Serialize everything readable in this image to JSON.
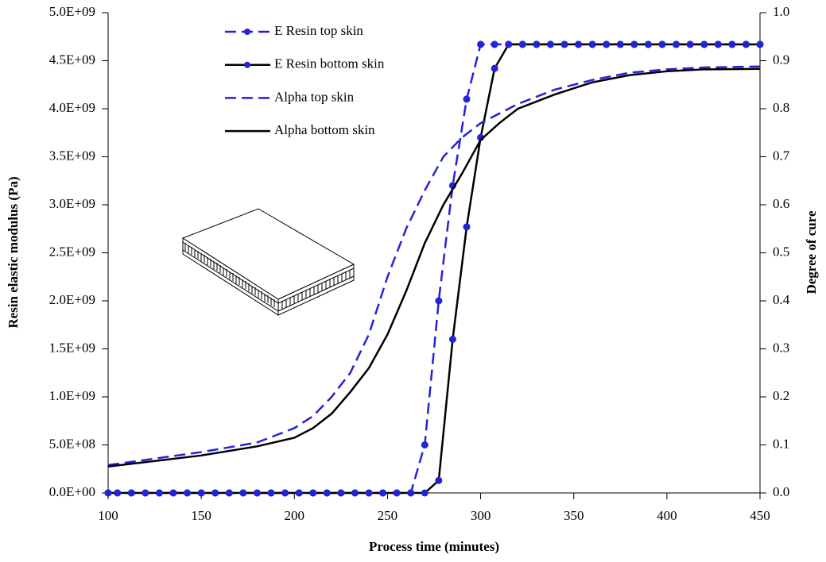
{
  "chart_data": {
    "type": "line",
    "xlabel": "Process time (minutes)",
    "ylabel": "Resin elastic modulus (Pa)",
    "y2label": "Degree of cure",
    "xlim": [
      100,
      450
    ],
    "xticks": [
      100,
      150,
      200,
      250,
      300,
      350,
      400,
      450
    ],
    "ylim": [
      0,
      5000000000
    ],
    "yticks": [
      {
        "value": 0,
        "label": "0.0E+00"
      },
      {
        "value": 500000000,
        "label": "5.0E+08"
      },
      {
        "value": 1000000000,
        "label": "1.0E+09"
      },
      {
        "value": 1500000000,
        "label": "1.5E+09"
      },
      {
        "value": 2000000000,
        "label": "2.0E+09"
      },
      {
        "value": 2500000000,
        "label": "2.5E+09"
      },
      {
        "value": 3000000000,
        "label": "3.0E+09"
      },
      {
        "value": 3500000000,
        "label": "3.5E+09"
      },
      {
        "value": 4000000000,
        "label": "4.0E+09"
      },
      {
        "value": 4500000000,
        "label": "4.5E+09"
      },
      {
        "value": 5000000000,
        "label": "5.0E+09"
      }
    ],
    "y2lim": [
      0,
      1
    ],
    "y2ticks": [
      {
        "value": 0,
        "label": "0.0"
      },
      0.1,
      0.2,
      0.3,
      0.4,
      0.5,
      0.6,
      0.7,
      0.8,
      0.9,
      {
        "value": 1,
        "label": "1.0"
      }
    ],
    "series": [
      {
        "name": "E Resin top skin",
        "color": "#2323d8",
        "style": "dashed",
        "marker": true,
        "x": [
          100,
          105,
          112.5,
          120,
          127.5,
          135,
          142.5,
          150,
          157.5,
          165,
          172.5,
          180,
          187.5,
          195,
          202.5,
          210,
          217.5,
          225,
          232.5,
          240,
          247.5,
          255,
          262.5,
          270,
          277.5,
          285,
          292.5,
          300,
          307.5,
          315,
          322.5,
          330,
          337.5,
          345,
          352.5,
          360,
          367.5,
          375,
          382.5,
          390,
          397.5,
          405,
          412.5,
          420,
          427.5,
          435,
          442.5,
          450
        ],
        "values": [
          0,
          0,
          0,
          0,
          0,
          0,
          0,
          0,
          0,
          0,
          0,
          0,
          0,
          0,
          0,
          0,
          0,
          0,
          0,
          0,
          0,
          0,
          0,
          500000000,
          2000000000,
          3200000000,
          4100000000,
          4670000000,
          4670000000,
          4670000000,
          4670000000,
          4670000000,
          4670000000,
          4670000000,
          4670000000,
          4670000000,
          4670000000,
          4670000000,
          4670000000,
          4670000000,
          4670000000,
          4670000000,
          4670000000,
          4670000000,
          4670000000,
          4670000000,
          4670000000,
          4670000000
        ]
      },
      {
        "name": "E Resin bottom skin",
        "color": "#000000",
        "style": "solid",
        "marker": true,
        "x": [
          100,
          105,
          112.5,
          120,
          127.5,
          135,
          142.5,
          150,
          157.5,
          165,
          172.5,
          180,
          187.5,
          195,
          202.5,
          210,
          217.5,
          225,
          232.5,
          240,
          247.5,
          255,
          262.5,
          270,
          277.5,
          285,
          292.5,
          300,
          307.5,
          315,
          322.5,
          330,
          337.5,
          345,
          352.5,
          360,
          367.5,
          375,
          382.5,
          390,
          397.5,
          405,
          412.5,
          420,
          427.5,
          435,
          442.5,
          450
        ],
        "values": [
          0,
          0,
          0,
          0,
          0,
          0,
          0,
          0,
          0,
          0,
          0,
          0,
          0,
          0,
          0,
          0,
          0,
          0,
          0,
          0,
          0,
          0,
          0,
          0,
          130000000,
          1600000000,
          2770000000,
          3700000000,
          4420000000,
          4670000000,
          4670000000,
          4670000000,
          4670000000,
          4670000000,
          4670000000,
          4670000000,
          4670000000,
          4670000000,
          4670000000,
          4670000000,
          4670000000,
          4670000000,
          4670000000,
          4670000000,
          4670000000,
          4670000000,
          4670000000,
          4670000000
        ]
      },
      {
        "name": "Alpha top skin",
        "color": "#2323d8",
        "style": "dashed",
        "marker": false,
        "axis": "y2",
        "x": [
          100,
          150,
          180,
          200,
          210,
          220,
          230,
          240,
          250,
          260,
          270,
          280,
          290,
          300,
          320,
          340,
          360,
          380,
          400,
          420,
          450
        ],
        "values": [
          0.058,
          0.085,
          0.105,
          0.135,
          0.16,
          0.2,
          0.25,
          0.33,
          0.45,
          0.55,
          0.63,
          0.7,
          0.74,
          0.77,
          0.81,
          0.84,
          0.86,
          0.875,
          0.882,
          0.886,
          0.888
        ]
      },
      {
        "name": "Alpha bottom skin",
        "color": "#000000",
        "style": "solid",
        "marker": false,
        "axis": "y2",
        "x": [
          100,
          150,
          180,
          200,
          210,
          220,
          230,
          240,
          250,
          260,
          270,
          280,
          290,
          300,
          310,
          320,
          340,
          360,
          380,
          400,
          420,
          450
        ],
        "values": [
          0.055,
          0.078,
          0.097,
          0.115,
          0.135,
          0.165,
          0.21,
          0.26,
          0.33,
          0.42,
          0.52,
          0.6,
          0.665,
          0.735,
          0.77,
          0.8,
          0.83,
          0.855,
          0.87,
          0.878,
          0.882,
          0.883
        ]
      }
    ]
  }
}
